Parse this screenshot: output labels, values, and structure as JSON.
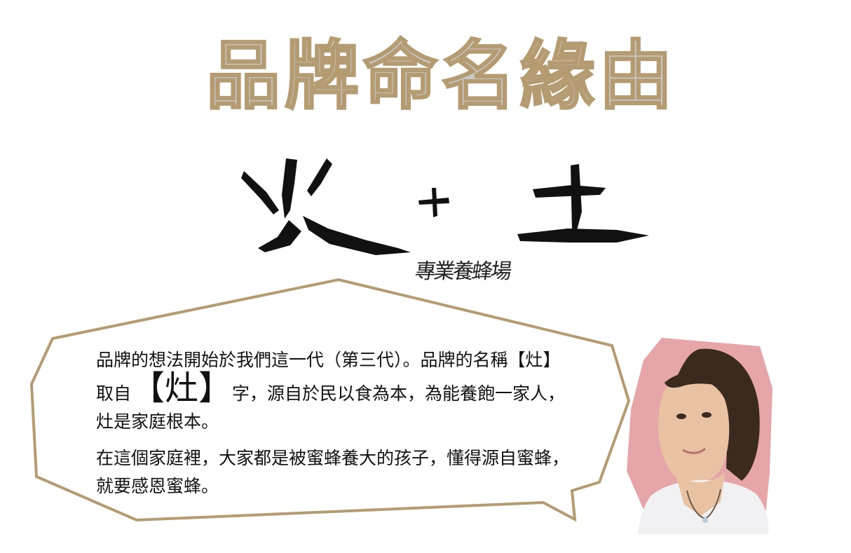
{
  "title": "品牌命名緣由",
  "brush": {
    "left_char": "火",
    "plus": "+",
    "right_char": "土"
  },
  "signature": "專業養蜂場",
  "bubble": {
    "p1_a": "品牌的想法開始於我們這一代（第三代）。品牌的名稱【灶】取自",
    "p1_big": "【灶】",
    "p1_b": "字，源自於民以食為本，為能養飽一家人，灶是家庭根本。",
    "p2": "在這個家庭裡，大家都是被蜜蜂養大的孩子，懂得源自蜜蜂，就要感恩蜜蜂。"
  },
  "colors": {
    "accent_gold": "#b59b72",
    "title_fill": "#c9c9c9",
    "text": "#111111"
  }
}
